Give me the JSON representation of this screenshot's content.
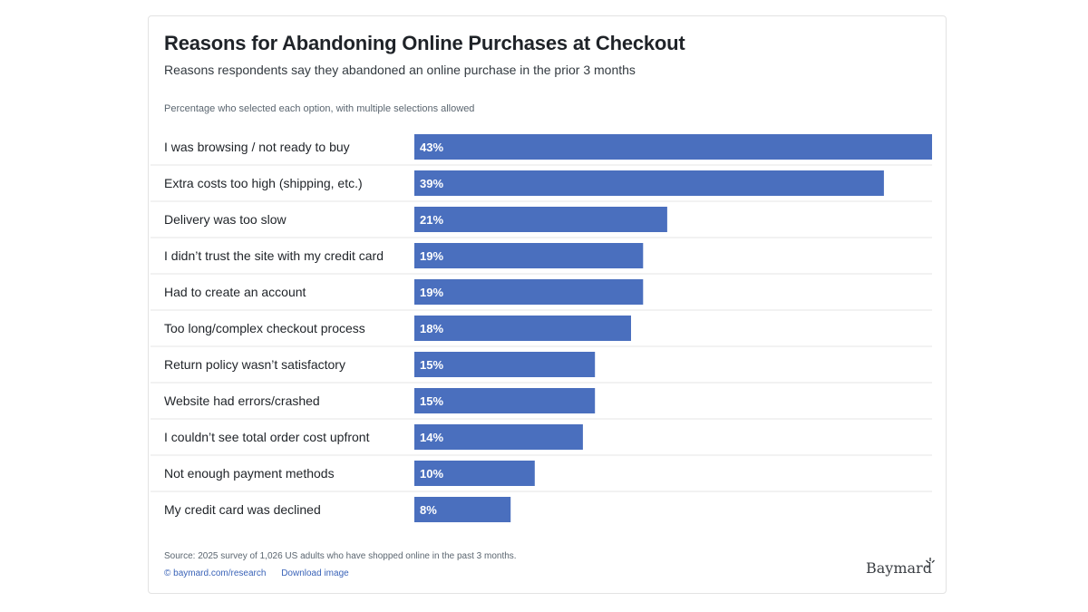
{
  "title": "Reasons for Abandoning Online Purchases at Checkout",
  "subtitle": "Reasons respondents say they abandoned an online purchase in the prior 3 months",
  "note": "Percentage who selected each option, with multiple selections allowed",
  "footer": {
    "source": "Source: 2025 survey of 1,026 US adults who have shopped online in the past 3 months.",
    "link_research": "© baymard.com/research",
    "link_download": "Download image",
    "logo_text": "Baymard"
  },
  "colors": {
    "bar": "#4a6fbe",
    "separator": "#e6e6e6"
  },
  "chart_data": {
    "type": "bar",
    "orientation": "horizontal",
    "categories": [
      "I was browsing / not ready to buy",
      "Extra costs too high (shipping, etc.)",
      "Delivery was too slow",
      "I didn’t trust the site with my credit card",
      "Had to create an account",
      "Too long/complex checkout process",
      "Return policy wasn’t satisfactory",
      "Website had errors/crashed",
      "I couldn’t see total order cost upfront",
      "Not enough payment methods",
      "My credit card was declined"
    ],
    "values": [
      43,
      39,
      21,
      19,
      19,
      18,
      15,
      15,
      14,
      10,
      8
    ],
    "value_labels": [
      "43%",
      "39%",
      "21%",
      "19%",
      "19%",
      "18%",
      "15%",
      "15%",
      "14%",
      "10%",
      "8%"
    ],
    "xlim": [
      0,
      43
    ],
    "grid": false,
    "legend": "none"
  }
}
